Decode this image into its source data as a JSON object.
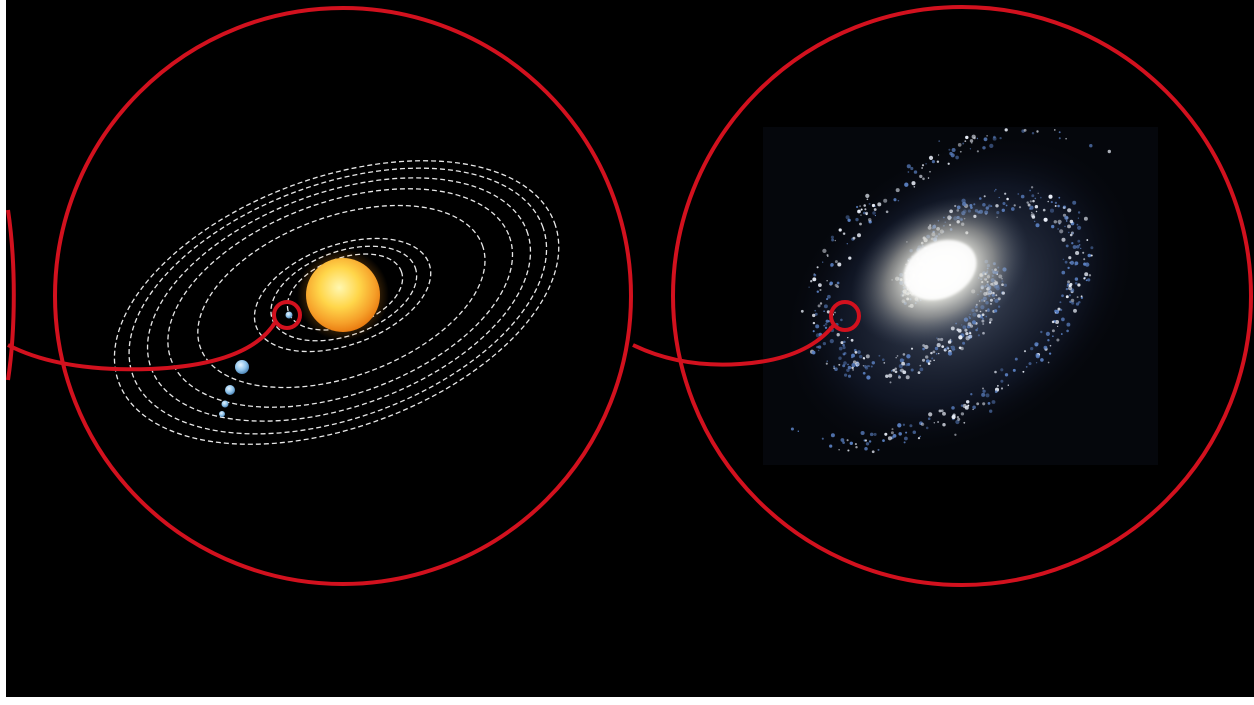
{
  "colors": {
    "background": "#000000",
    "frame": "#ffffff",
    "zoom_ring": "#d2111e",
    "orbit": "#e8e8e8",
    "sun_core": "#fff3a0",
    "sun_edge": "#f28a10",
    "planet": "#8fc3ea",
    "galaxy_core": "#ffffff",
    "galaxy_arm": "#5a7fc0"
  },
  "scene": {
    "left_ring": "partial-zoom-circle",
    "solar_system": {
      "orbit_count": 8,
      "orbit_style": "dashed",
      "sun": "sun-icon",
      "planets_shown": 4,
      "highlight": "earth-marker-ring"
    },
    "galaxy": {
      "type": "spiral",
      "highlight": "sun-position-marker-ring"
    },
    "connectors": [
      "curve-left-to-solar-system",
      "curve-solar-system-to-galaxy"
    ]
  }
}
